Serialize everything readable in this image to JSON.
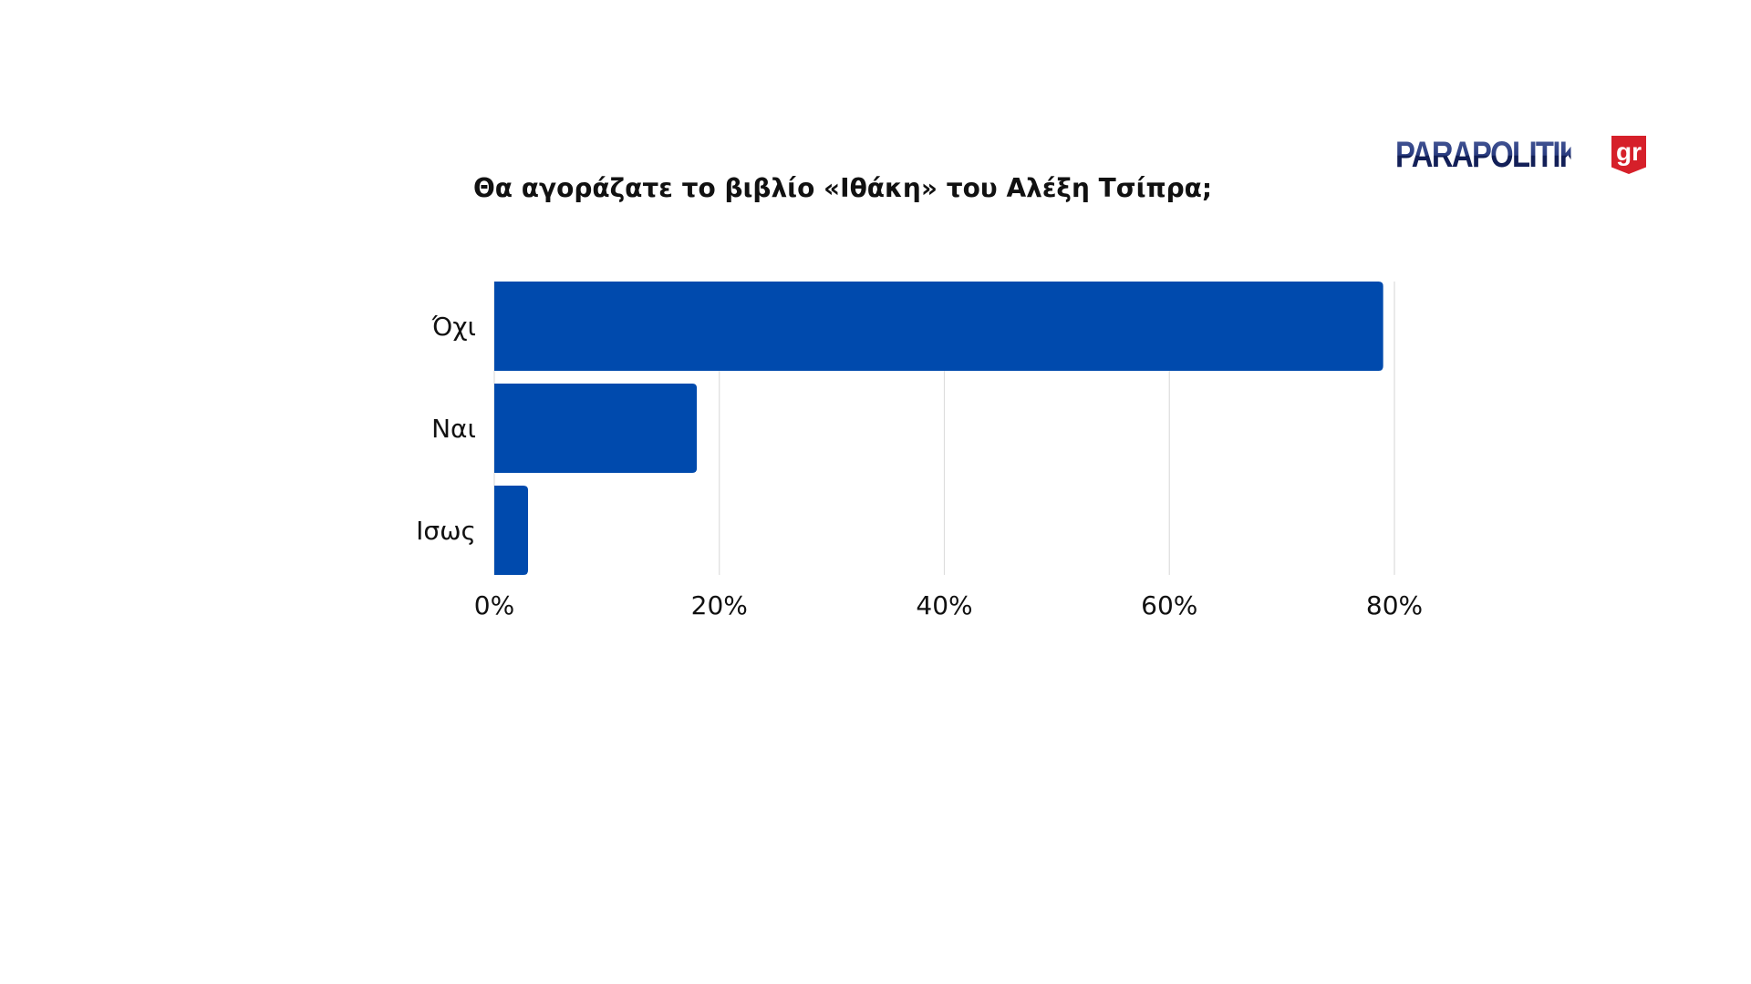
{
  "chart_data": {
    "type": "bar",
    "orientation": "horizontal",
    "title": "Θα αγοράζατε το βιβλίο «Ιθάκη» του Αλέξη Τσίπρα;",
    "categories": [
      "Όχι",
      "Ναι",
      "Ισως"
    ],
    "values": [
      79,
      18,
      3
    ],
    "xlim": [
      0,
      80
    ],
    "xticks": [
      "0%",
      "20%",
      "40%",
      "60%",
      "80%"
    ],
    "xtick_values": [
      0,
      20,
      40,
      60,
      80
    ],
    "grid": "vertical",
    "bar_color": "#004aad",
    "grid_color": "#dddddd"
  },
  "logo": {
    "text": "PARAPOLITIKA",
    "suffix": "gr",
    "colors": {
      "word": "#1e2f6b",
      "badge": "#d6202a"
    }
  }
}
